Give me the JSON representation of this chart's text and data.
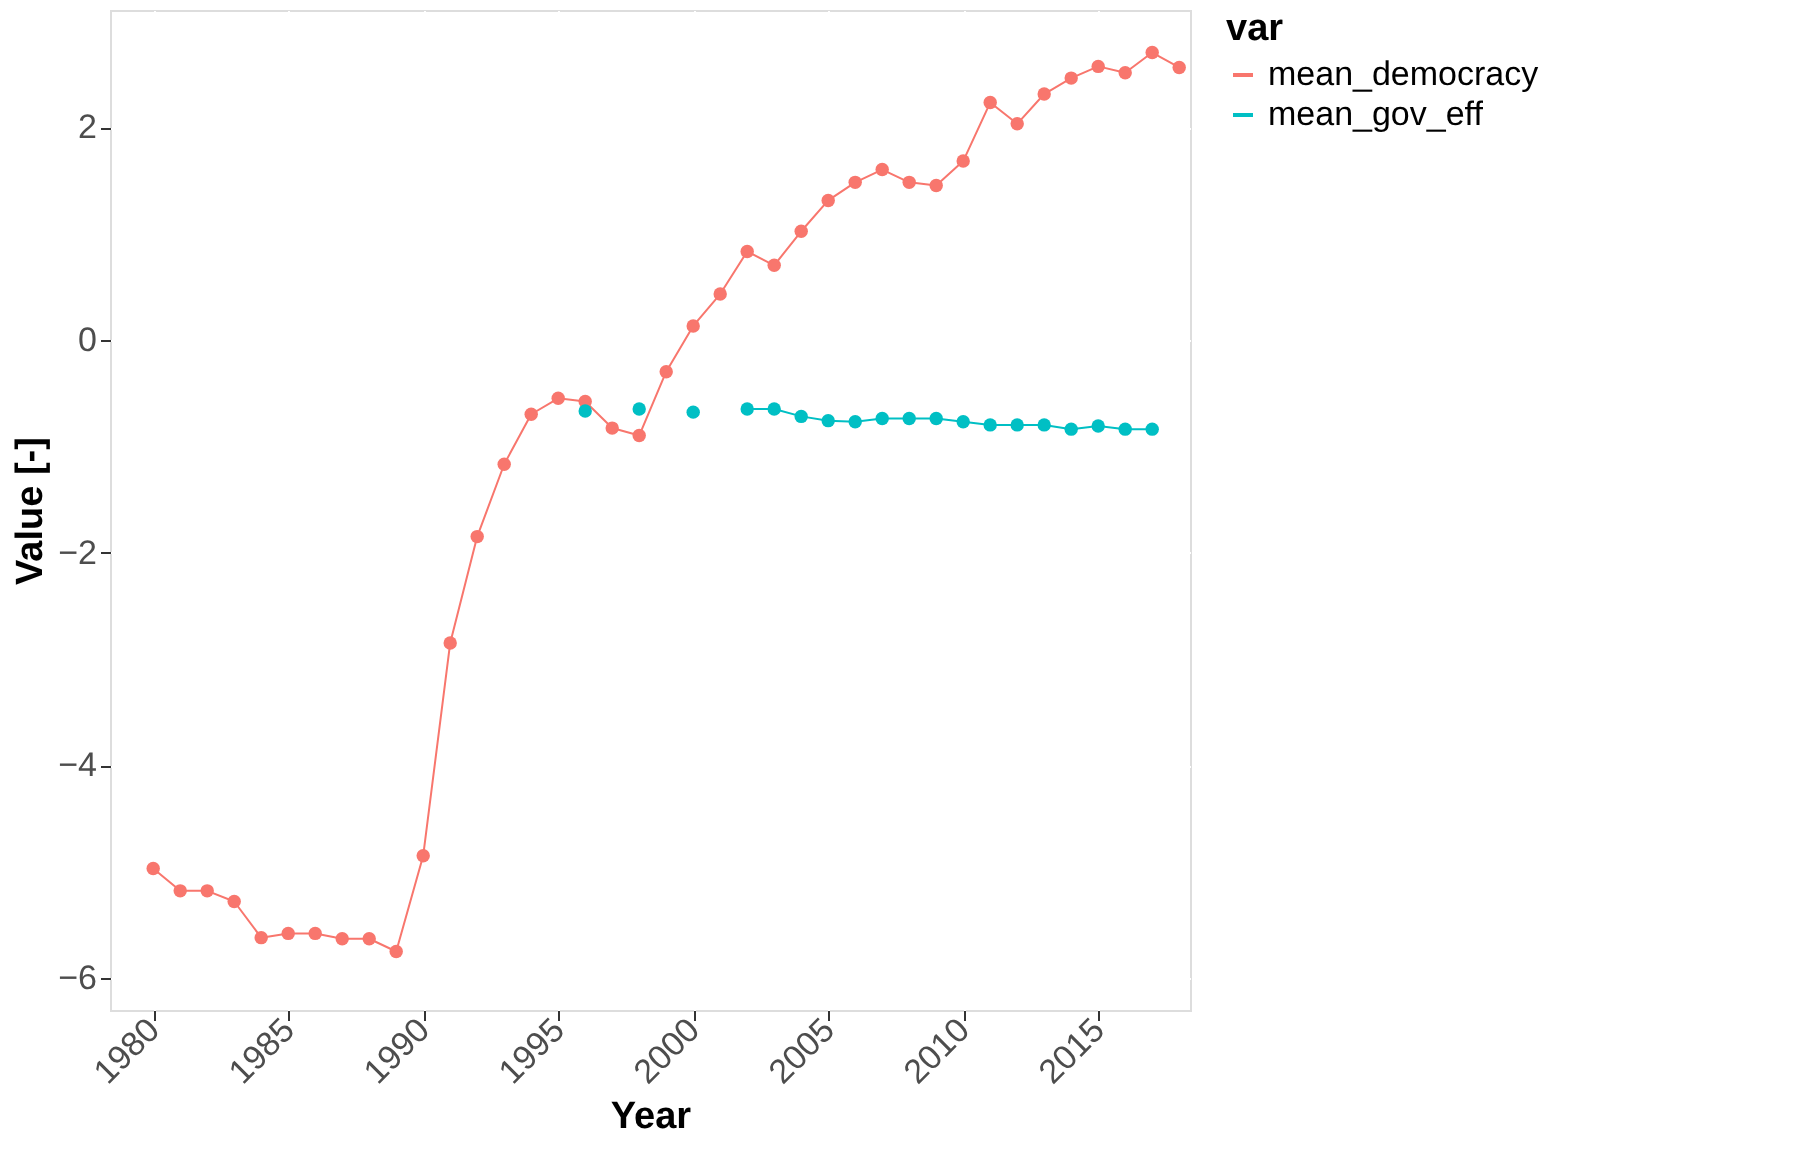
{
  "chart_data": {
    "type": "line",
    "xlabel": "Year",
    "ylabel": "Value [-]",
    "legend_title": "var",
    "legend": "right",
    "grid": true,
    "marker": "circle",
    "line_style": "solid",
    "x": [
      1980,
      1981,
      1982,
      1983,
      1984,
      1985,
      1986,
      1987,
      1988,
      1989,
      1990,
      1991,
      1992,
      1993,
      1994,
      1995,
      1996,
      1997,
      1998,
      1999,
      2000,
      2001,
      2002,
      2003,
      2004,
      2005,
      2006,
      2007,
      2008,
      2009,
      2010,
      2011,
      2012,
      2013,
      2014,
      2015,
      2016,
      2017,
      2018
    ],
    "xlim": [
      1978.4,
      2018.4
    ],
    "xticks": [
      1980,
      1985,
      1990,
      1995,
      2000,
      2005,
      2010,
      2015
    ],
    "ylim": [
      -6.3,
      3.1
    ],
    "yticks": [
      -6,
      -4,
      -2,
      0,
      2
    ],
    "series": [
      {
        "name": "mean_democracy",
        "color": "#f8766d",
        "values": [
          -4.97,
          -5.18,
          -5.18,
          -5.28,
          -5.62,
          -5.58,
          -5.58,
          -5.63,
          -5.63,
          -5.75,
          -4.85,
          -2.85,
          -1.85,
          -1.17,
          -0.7,
          -0.55,
          -0.58,
          -0.83,
          -0.9,
          -0.3,
          0.13,
          0.43,
          0.83,
          0.7,
          1.02,
          1.31,
          1.48,
          1.6,
          1.48,
          1.45,
          1.68,
          2.23,
          2.03,
          2.31,
          2.46,
          2.57,
          2.51,
          2.7,
          2.56
        ]
      },
      {
        "name": "mean_gov_eff",
        "color": "#00bfc4",
        "values": [
          null,
          null,
          null,
          null,
          null,
          null,
          null,
          null,
          null,
          null,
          null,
          null,
          null,
          null,
          null,
          null,
          -0.67,
          null,
          -0.65,
          null,
          -0.68,
          null,
          -0.65,
          -0.65,
          -0.72,
          -0.76,
          -0.77,
          -0.74,
          -0.74,
          -0.74,
          -0.77,
          -0.8,
          -0.8,
          -0.8,
          -0.84,
          -0.81,
          -0.84,
          -0.84,
          null
        ]
      }
    ]
  }
}
